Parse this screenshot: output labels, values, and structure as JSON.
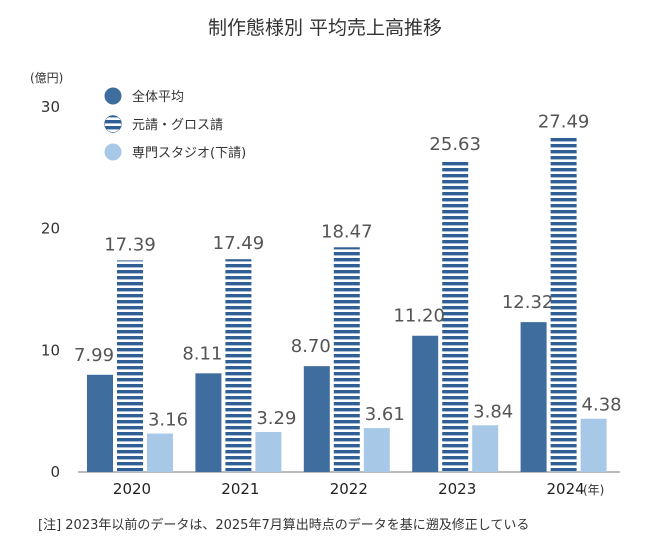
{
  "chart_data": {
    "type": "bar",
    "title": "制作態様別 平均売上高推移",
    "yunit": "(億円)",
    "xunit": "(年)",
    "categories": [
      "2020",
      "2021",
      "2022",
      "2023",
      "2024"
    ],
    "ylim": [
      0,
      30
    ],
    "yticks": [
      "0",
      "10",
      "20",
      "30"
    ],
    "grid": false,
    "legend_position": "top-left",
    "series": [
      {
        "name": "全体平均",
        "values": [
          7.99,
          8.11,
          8.7,
          11.2,
          12.32
        ],
        "labels": [
          "7.99",
          "8.11",
          "8.70",
          "11.20",
          "12.32"
        ],
        "color": "#3f6d9e",
        "pattern": "solid"
      },
      {
        "name": "元請・グロス請",
        "values": [
          17.39,
          17.49,
          18.47,
          25.63,
          27.49
        ],
        "labels": [
          "17.39",
          "17.49",
          "18.47",
          "25.63",
          "27.49"
        ],
        "color": "#2f5f94",
        "pattern": "horizontal-stripes"
      },
      {
        "name": "専門スタジオ(下請)",
        "values": [
          3.16,
          3.29,
          3.61,
          3.84,
          4.38
        ],
        "labels": [
          "3.16",
          "3.29",
          "3.61",
          "3.84",
          "4.38"
        ],
        "color": "#a8c8e8",
        "pattern": "solid"
      }
    ]
  },
  "note": "[注] 2023年以前のデータは、2025年7月算出時点のデータを基に遡及修正している"
}
